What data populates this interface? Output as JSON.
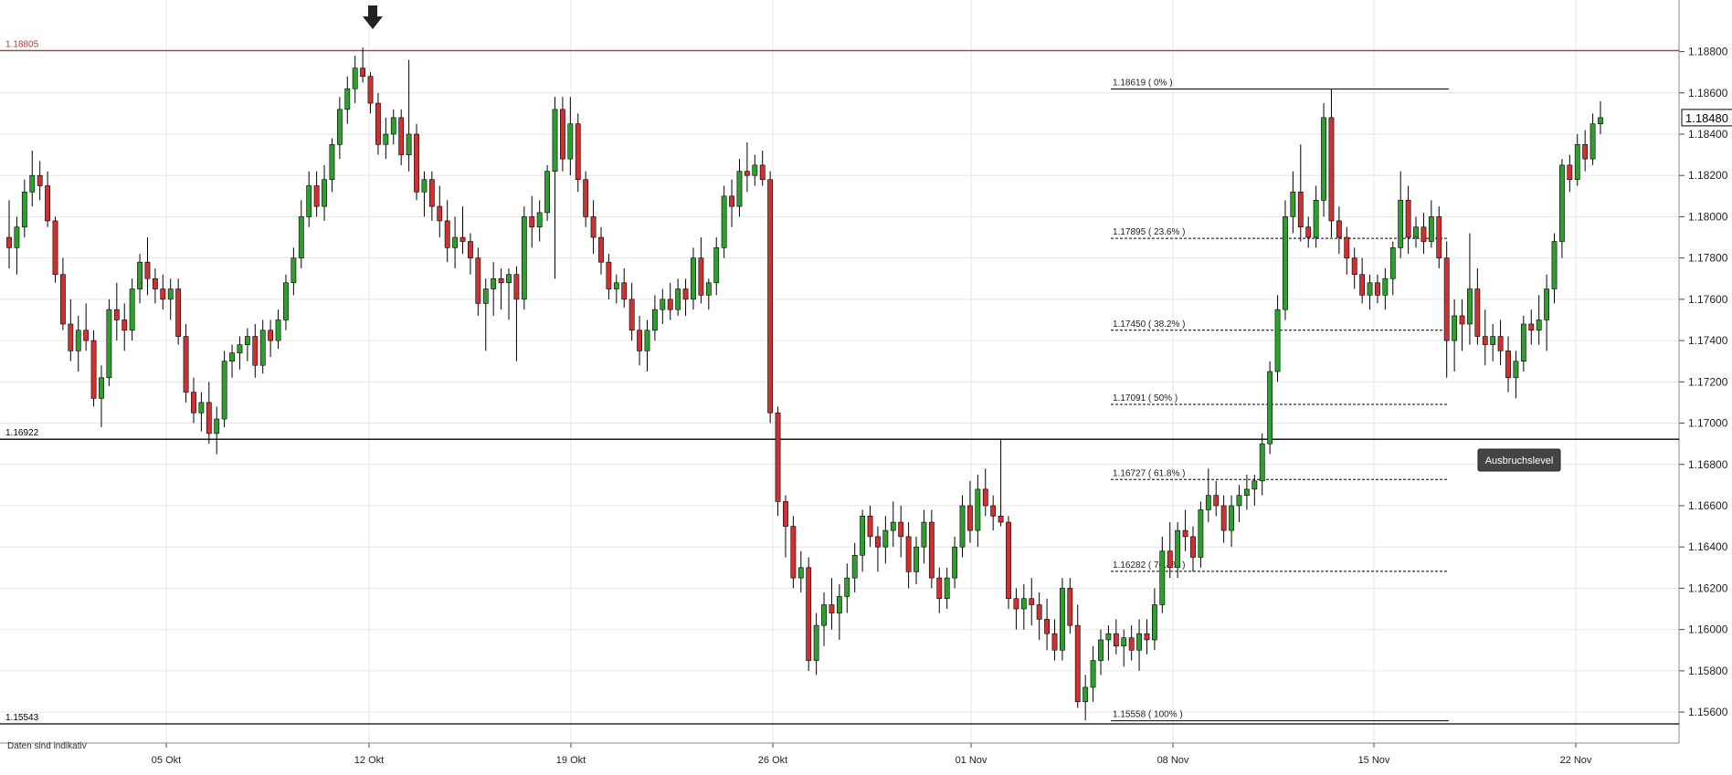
{
  "chart_data": {
    "type": "candlestick",
    "title": "",
    "y_axis": {
      "min": 1.1545,
      "max": 1.1905,
      "ticks": [
        "1.18800",
        "1.18600",
        "1.18400",
        "1.18200",
        "1.18000",
        "1.17800",
        "1.17600",
        "1.17400",
        "1.17200",
        "1.17000",
        "1.16800",
        "1.16600",
        "1.16400",
        "1.16200",
        "1.16000",
        "1.15800",
        "1.15600"
      ]
    },
    "x_axis": {
      "labels": [
        "05 Okt",
        "12 Okt",
        "19 Okt",
        "26 Okt",
        "01 Nov",
        "08 Nov",
        "15 Nov",
        "22 Nov"
      ]
    },
    "grid": true,
    "current_price": "1.18480",
    "colors": {
      "up": "#2e9e2e",
      "down": "#d03030",
      "wick": "#000000",
      "resistance": "#b03a2e",
      "support": "#000000",
      "fib": "#000000"
    },
    "marker": {
      "icon": "down-arrow-icon",
      "label": "12 Okt high"
    },
    "horizontal_levels": [
      {
        "id": "resistance",
        "value": 1.18805,
        "label": "1.18805",
        "color": "#b03a2e",
        "style": "solid"
      },
      {
        "id": "breakout",
        "value": 1.16922,
        "label": "1.16922",
        "color": "#000000",
        "style": "solid"
      },
      {
        "id": "low",
        "value": 1.15543,
        "label": "1.15543",
        "color": "#000000",
        "style": "solid"
      }
    ],
    "annotation": {
      "text": "Ausbruchslevel"
    },
    "fibonacci": [
      {
        "value": 1.18619,
        "label": "1.18619 ( 0% )",
        "style": "solid"
      },
      {
        "value": 1.17895,
        "label": "1.17895 ( 23.6% )",
        "style": "dashed"
      },
      {
        "value": 1.1745,
        "label": "1.17450 ( 38.2% )",
        "style": "dashed"
      },
      {
        "value": 1.17091,
        "label": "1.17091 ( 50% )",
        "style": "dashed"
      },
      {
        "value": 1.16727,
        "label": "1.16727 ( 61.8% )",
        "style": "dashed"
      },
      {
        "value": 1.16282,
        "label": "1.16282 ( 76.4% )",
        "style": "dashed"
      },
      {
        "value": 1.15558,
        "label": "1.15558 ( 100% )",
        "style": "solid"
      }
    ],
    "candles_ohlc": [
      [
        1.179,
        1.1808,
        1.1775,
        1.1785
      ],
      [
        1.1785,
        1.18,
        1.1772,
        1.1795
      ],
      [
        1.1795,
        1.1818,
        1.179,
        1.1812
      ],
      [
        1.1812,
        1.1832,
        1.1805,
        1.182
      ],
      [
        1.182,
        1.1827,
        1.1808,
        1.1815
      ],
      [
        1.1815,
        1.1822,
        1.1795,
        1.1798
      ],
      [
        1.1798,
        1.18,
        1.1768,
        1.1772
      ],
      [
        1.1772,
        1.178,
        1.1745,
        1.1748
      ],
      [
        1.1748,
        1.176,
        1.173,
        1.1735
      ],
      [
        1.1735,
        1.1752,
        1.1725,
        1.1745
      ],
      [
        1.1745,
        1.1758,
        1.1735,
        1.174
      ],
      [
        1.174,
        1.1745,
        1.1708,
        1.1712
      ],
      [
        1.1712,
        1.1728,
        1.1698,
        1.1722
      ],
      [
        1.1722,
        1.176,
        1.1718,
        1.1755
      ],
      [
        1.1755,
        1.1768,
        1.174,
        1.175
      ],
      [
        1.175,
        1.1758,
        1.1735,
        1.1745
      ],
      [
        1.1745,
        1.177,
        1.174,
        1.1765
      ],
      [
        1.1765,
        1.1782,
        1.1758,
        1.1778
      ],
      [
        1.1778,
        1.179,
        1.1762,
        1.177
      ],
      [
        1.177,
        1.1775,
        1.1758,
        1.1765
      ],
      [
        1.1765,
        1.1772,
        1.1755,
        1.176
      ],
      [
        1.176,
        1.177,
        1.175,
        1.1765
      ],
      [
        1.1765,
        1.177,
        1.1738,
        1.1742
      ],
      [
        1.1742,
        1.1748,
        1.171,
        1.1715
      ],
      [
        1.1715,
        1.1722,
        1.17,
        1.1705
      ],
      [
        1.1705,
        1.1715,
        1.1696,
        1.171
      ],
      [
        1.171,
        1.172,
        1.169,
        1.1695
      ],
      [
        1.1695,
        1.1708,
        1.1685,
        1.1702
      ],
      [
        1.1702,
        1.1735,
        1.1698,
        1.173
      ],
      [
        1.173,
        1.1738,
        1.1722,
        1.1734
      ],
      [
        1.1734,
        1.1742,
        1.1726,
        1.1738
      ],
      [
        1.1738,
        1.1746,
        1.173,
        1.1742
      ],
      [
        1.1742,
        1.1748,
        1.1722,
        1.1728
      ],
      [
        1.1728,
        1.175,
        1.1724,
        1.1745
      ],
      [
        1.1745,
        1.175,
        1.1732,
        1.174
      ],
      [
        1.174,
        1.1755,
        1.1736,
        1.175
      ],
      [
        1.175,
        1.1772,
        1.1745,
        1.1768
      ],
      [
        1.1768,
        1.1785,
        1.1762,
        1.178
      ],
      [
        1.178,
        1.1808,
        1.1775,
        1.18
      ],
      [
        1.18,
        1.1822,
        1.1795,
        1.1815
      ],
      [
        1.1815,
        1.1822,
        1.18,
        1.1805
      ],
      [
        1.1805,
        1.1825,
        1.1798,
        1.1818
      ],
      [
        1.1818,
        1.1838,
        1.1812,
        1.1835
      ],
      [
        1.1835,
        1.1858,
        1.1828,
        1.1852
      ],
      [
        1.1852,
        1.1868,
        1.1845,
        1.1862
      ],
      [
        1.1862,
        1.1878,
        1.1855,
        1.1872
      ],
      [
        1.1872,
        1.1882,
        1.1865,
        1.1868
      ],
      [
        1.1868,
        1.187,
        1.185,
        1.1855
      ],
      [
        1.1855,
        1.186,
        1.183,
        1.1835
      ],
      [
        1.1835,
        1.1848,
        1.1828,
        1.184
      ],
      [
        1.184,
        1.1852,
        1.1835,
        1.1848
      ],
      [
        1.1848,
        1.1852,
        1.1825,
        1.183
      ],
      [
        1.183,
        1.1876,
        1.1822,
        1.184
      ],
      [
        1.184,
        1.1845,
        1.1808,
        1.1812
      ],
      [
        1.1812,
        1.1822,
        1.18,
        1.1818
      ],
      [
        1.1818,
        1.1822,
        1.1798,
        1.1805
      ],
      [
        1.1805,
        1.1815,
        1.179,
        1.1798
      ],
      [
        1.1798,
        1.1808,
        1.1778,
        1.1785
      ],
      [
        1.1785,
        1.18,
        1.1775,
        1.179
      ],
      [
        1.179,
        1.1805,
        1.1782,
        1.1788
      ],
      [
        1.1788,
        1.1792,
        1.1772,
        1.178
      ],
      [
        1.178,
        1.1785,
        1.1752,
        1.1758
      ],
      [
        1.1758,
        1.177,
        1.1735,
        1.1765
      ],
      [
        1.1765,
        1.1778,
        1.1752,
        1.177
      ],
      [
        1.177,
        1.1775,
        1.1755,
        1.1768
      ],
      [
        1.1768,
        1.1775,
        1.175,
        1.1772
      ],
      [
        1.1772,
        1.1776,
        1.173,
        1.176
      ],
      [
        1.176,
        1.1805,
        1.1755,
        1.18
      ],
      [
        1.18,
        1.181,
        1.1785,
        1.1795
      ],
      [
        1.1795,
        1.1808,
        1.1788,
        1.1802
      ],
      [
        1.1802,
        1.1825,
        1.1798,
        1.1822
      ],
      [
        1.1822,
        1.1858,
        1.177,
        1.1852
      ],
      [
        1.1852,
        1.1858,
        1.1822,
        1.1828
      ],
      [
        1.1828,
        1.1858,
        1.182,
        1.1845
      ],
      [
        1.1845,
        1.185,
        1.1812,
        1.1818
      ],
      [
        1.1818,
        1.1822,
        1.1795,
        1.18
      ],
      [
        1.18,
        1.1808,
        1.1782,
        1.179
      ],
      [
        1.179,
        1.1795,
        1.1772,
        1.1778
      ],
      [
        1.1778,
        1.1782,
        1.176,
        1.1765
      ],
      [
        1.1765,
        1.1772,
        1.1758,
        1.1768
      ],
      [
        1.1768,
        1.1775,
        1.1756,
        1.176
      ],
      [
        1.176,
        1.1768,
        1.174,
        1.1745
      ],
      [
        1.1745,
        1.1752,
        1.1728,
        1.1735
      ],
      [
        1.1735,
        1.175,
        1.1725,
        1.1745
      ],
      [
        1.1745,
        1.1762,
        1.174,
        1.1755
      ],
      [
        1.1755,
        1.1765,
        1.1748,
        1.176
      ],
      [
        1.176,
        1.1768,
        1.175,
        1.1755
      ],
      [
        1.1755,
        1.177,
        1.1752,
        1.1765
      ],
      [
        1.1765,
        1.177,
        1.1752,
        1.176
      ],
      [
        1.176,
        1.1785,
        1.1755,
        1.178
      ],
      [
        1.178,
        1.179,
        1.1758,
        1.1762
      ],
      [
        1.1762,
        1.177,
        1.1755,
        1.1768
      ],
      [
        1.1768,
        1.179,
        1.1762,
        1.1785
      ],
      [
        1.1785,
        1.1815,
        1.178,
        1.181
      ],
      [
        1.181,
        1.1818,
        1.1795,
        1.1805
      ],
      [
        1.1805,
        1.1828,
        1.18,
        1.1822
      ],
      [
        1.1822,
        1.1836,
        1.1812,
        1.182
      ],
      [
        1.182,
        1.183,
        1.1815,
        1.1825
      ],
      [
        1.1825,
        1.1832,
        1.1815,
        1.1818
      ],
      [
        1.1818,
        1.1822,
        1.17,
        1.1705
      ],
      [
        1.1705,
        1.1708,
        1.1655,
        1.1662
      ],
      [
        1.1662,
        1.1665,
        1.1635,
        1.165
      ],
      [
        1.165,
        1.1655,
        1.162,
        1.1625
      ],
      [
        1.1625,
        1.1638,
        1.1618,
        1.163
      ],
      [
        1.163,
        1.1635,
        1.158,
        1.1585
      ],
      [
        1.1585,
        1.1608,
        1.1578,
        1.1602
      ],
      [
        1.1602,
        1.1618,
        1.1592,
        1.1612
      ],
      [
        1.1612,
        1.1625,
        1.16,
        1.1608
      ],
      [
        1.1608,
        1.1622,
        1.1595,
        1.1616
      ],
      [
        1.1616,
        1.1632,
        1.1608,
        1.1625
      ],
      [
        1.1625,
        1.1642,
        1.1618,
        1.1636
      ],
      [
        1.1636,
        1.1658,
        1.1628,
        1.1655
      ],
      [
        1.1655,
        1.166,
        1.164,
        1.1645
      ],
      [
        1.1645,
        1.165,
        1.1628,
        1.164
      ],
      [
        1.164,
        1.1655,
        1.1632,
        1.1648
      ],
      [
        1.1648,
        1.1662,
        1.164,
        1.1652
      ],
      [
        1.1652,
        1.166,
        1.1635,
        1.1645
      ],
      [
        1.1645,
        1.1652,
        1.162,
        1.1628
      ],
      [
        1.1628,
        1.1645,
        1.1622,
        1.164
      ],
      [
        1.164,
        1.1658,
        1.1632,
        1.1652
      ],
      [
        1.1652,
        1.1658,
        1.162,
        1.1625
      ],
      [
        1.1625,
        1.163,
        1.1608,
        1.1615
      ],
      [
        1.1615,
        1.163,
        1.161,
        1.1625
      ],
      [
        1.1625,
        1.1645,
        1.162,
        1.164
      ],
      [
        1.164,
        1.1665,
        1.1635,
        1.166
      ],
      [
        1.166,
        1.1672,
        1.1642,
        1.1648
      ],
      [
        1.1648,
        1.1675,
        1.164,
        1.1668
      ],
      [
        1.1668,
        1.1678,
        1.1655,
        1.166
      ],
      [
        1.166,
        1.1665,
        1.1648,
        1.1655
      ],
      [
        1.1655,
        1.1692,
        1.165,
        1.1652
      ],
      [
        1.1652,
        1.1655,
        1.161,
        1.1615
      ],
      [
        1.1615,
        1.162,
        1.16,
        1.161
      ],
      [
        1.161,
        1.1622,
        1.16,
        1.1615
      ],
      [
        1.1615,
        1.1625,
        1.1602,
        1.1612
      ],
      [
        1.1612,
        1.1618,
        1.1595,
        1.1605
      ],
      [
        1.1605,
        1.1615,
        1.159,
        1.1598
      ],
      [
        1.1598,
        1.1605,
        1.1585,
        1.159
      ],
      [
        1.159,
        1.1625,
        1.1585,
        1.162
      ],
      [
        1.162,
        1.1625,
        1.1598,
        1.1602
      ],
      [
        1.1602,
        1.1612,
        1.1562,
        1.1565
      ],
      [
        1.1565,
        1.1578,
        1.1556,
        1.1572
      ],
      [
        1.1572,
        1.1592,
        1.1565,
        1.1585
      ],
      [
        1.1585,
        1.16,
        1.1578,
        1.1595
      ],
      [
        1.1595,
        1.1602,
        1.1585,
        1.1598
      ],
      [
        1.1598,
        1.1605,
        1.1588,
        1.1592
      ],
      [
        1.1592,
        1.16,
        1.1582,
        1.1596
      ],
      [
        1.1596,
        1.1602,
        1.1585,
        1.159
      ],
      [
        1.159,
        1.1605,
        1.158,
        1.1598
      ],
      [
        1.1598,
        1.1605,
        1.1588,
        1.1595
      ],
      [
        1.1595,
        1.162,
        1.159,
        1.1612
      ],
      [
        1.1612,
        1.1645,
        1.1608,
        1.1638
      ],
      [
        1.1638,
        1.1652,
        1.1625,
        1.163
      ],
      [
        1.163,
        1.1652,
        1.1625,
        1.1648
      ],
      [
        1.1648,
        1.1658,
        1.1638,
        1.1645
      ],
      [
        1.1645,
        1.165,
        1.1628,
        1.1635
      ],
      [
        1.1635,
        1.1662,
        1.163,
        1.1658
      ],
      [
        1.1658,
        1.1678,
        1.1652,
        1.1665
      ],
      [
        1.1665,
        1.1672,
        1.1655,
        1.166
      ],
      [
        1.166,
        1.1665,
        1.1642,
        1.1648
      ],
      [
        1.1648,
        1.1665,
        1.164,
        1.166
      ],
      [
        1.166,
        1.167,
        1.1652,
        1.1665
      ],
      [
        1.1665,
        1.1675,
        1.1658,
        1.1668
      ],
      [
        1.1668,
        1.1675,
        1.166,
        1.1672
      ],
      [
        1.1672,
        1.1695,
        1.1665,
        1.169
      ],
      [
        1.169,
        1.173,
        1.1685,
        1.1725
      ],
      [
        1.1725,
        1.1762,
        1.172,
        1.1755
      ],
      [
        1.1755,
        1.1808,
        1.175,
        1.18
      ],
      [
        1.18,
        1.1822,
        1.1792,
        1.1812
      ],
      [
        1.1812,
        1.1835,
        1.1788,
        1.1795
      ],
      [
        1.1795,
        1.18,
        1.1785,
        1.179
      ],
      [
        1.179,
        1.1815,
        1.1785,
        1.1808
      ],
      [
        1.1808,
        1.1855,
        1.18,
        1.1848
      ],
      [
        1.1848,
        1.1862,
        1.179,
        1.1798
      ],
      [
        1.1798,
        1.1805,
        1.1782,
        1.179
      ],
      [
        1.179,
        1.1795,
        1.1772,
        1.178
      ],
      [
        1.178,
        1.1785,
        1.1765,
        1.1772
      ],
      [
        1.1772,
        1.178,
        1.1758,
        1.1762
      ],
      [
        1.1762,
        1.1772,
        1.1755,
        1.1768
      ],
      [
        1.1768,
        1.1772,
        1.1758,
        1.1762
      ],
      [
        1.1762,
        1.1775,
        1.1755,
        1.177
      ],
      [
        1.177,
        1.1788,
        1.1762,
        1.1785
      ],
      [
        1.1785,
        1.1822,
        1.178,
        1.1808
      ],
      [
        1.1808,
        1.1815,
        1.1782,
        1.179
      ],
      [
        1.179,
        1.18,
        1.1785,
        1.1795
      ],
      [
        1.1795,
        1.1802,
        1.1782,
        1.1788
      ],
      [
        1.1788,
        1.1808,
        1.1785,
        1.18
      ],
      [
        1.18,
        1.1805,
        1.1775,
        1.178
      ],
      [
        1.178,
        1.1788,
        1.1722,
        1.174
      ],
      [
        1.174,
        1.176,
        1.1725,
        1.1752
      ],
      [
        1.1752,
        1.176,
        1.1735,
        1.1748
      ],
      [
        1.1748,
        1.1792,
        1.1738,
        1.1765
      ],
      [
        1.1765,
        1.1775,
        1.1738,
        1.1742
      ],
      [
        1.1742,
        1.1755,
        1.1728,
        1.1738
      ],
      [
        1.1738,
        1.1748,
        1.173,
        1.1742
      ],
      [
        1.1742,
        1.175,
        1.1728,
        1.1735
      ],
      [
        1.1735,
        1.1742,
        1.1715,
        1.1722
      ],
      [
        1.1722,
        1.1735,
        1.1712,
        1.173
      ],
      [
        1.173,
        1.1752,
        1.1725,
        1.1748
      ],
      [
        1.1748,
        1.1755,
        1.1738,
        1.1745
      ],
      [
        1.1745,
        1.1762,
        1.1738,
        1.175
      ],
      [
        1.175,
        1.1772,
        1.1735,
        1.1765
      ],
      [
        1.1765,
        1.1792,
        1.1758,
        1.1788
      ],
      [
        1.1788,
        1.1828,
        1.178,
        1.1825
      ],
      [
        1.1825,
        1.183,
        1.1812,
        1.1818
      ],
      [
        1.1818,
        1.184,
        1.1815,
        1.1835
      ],
      [
        1.1835,
        1.1842,
        1.1822,
        1.1828
      ],
      [
        1.1828,
        1.185,
        1.1825,
        1.1845
      ],
      [
        1.1845,
        1.1856,
        1.184,
        1.1848
      ]
    ]
  },
  "footer": {
    "note": "Daten sind indikativ"
  },
  "price_tag": "1.18480"
}
